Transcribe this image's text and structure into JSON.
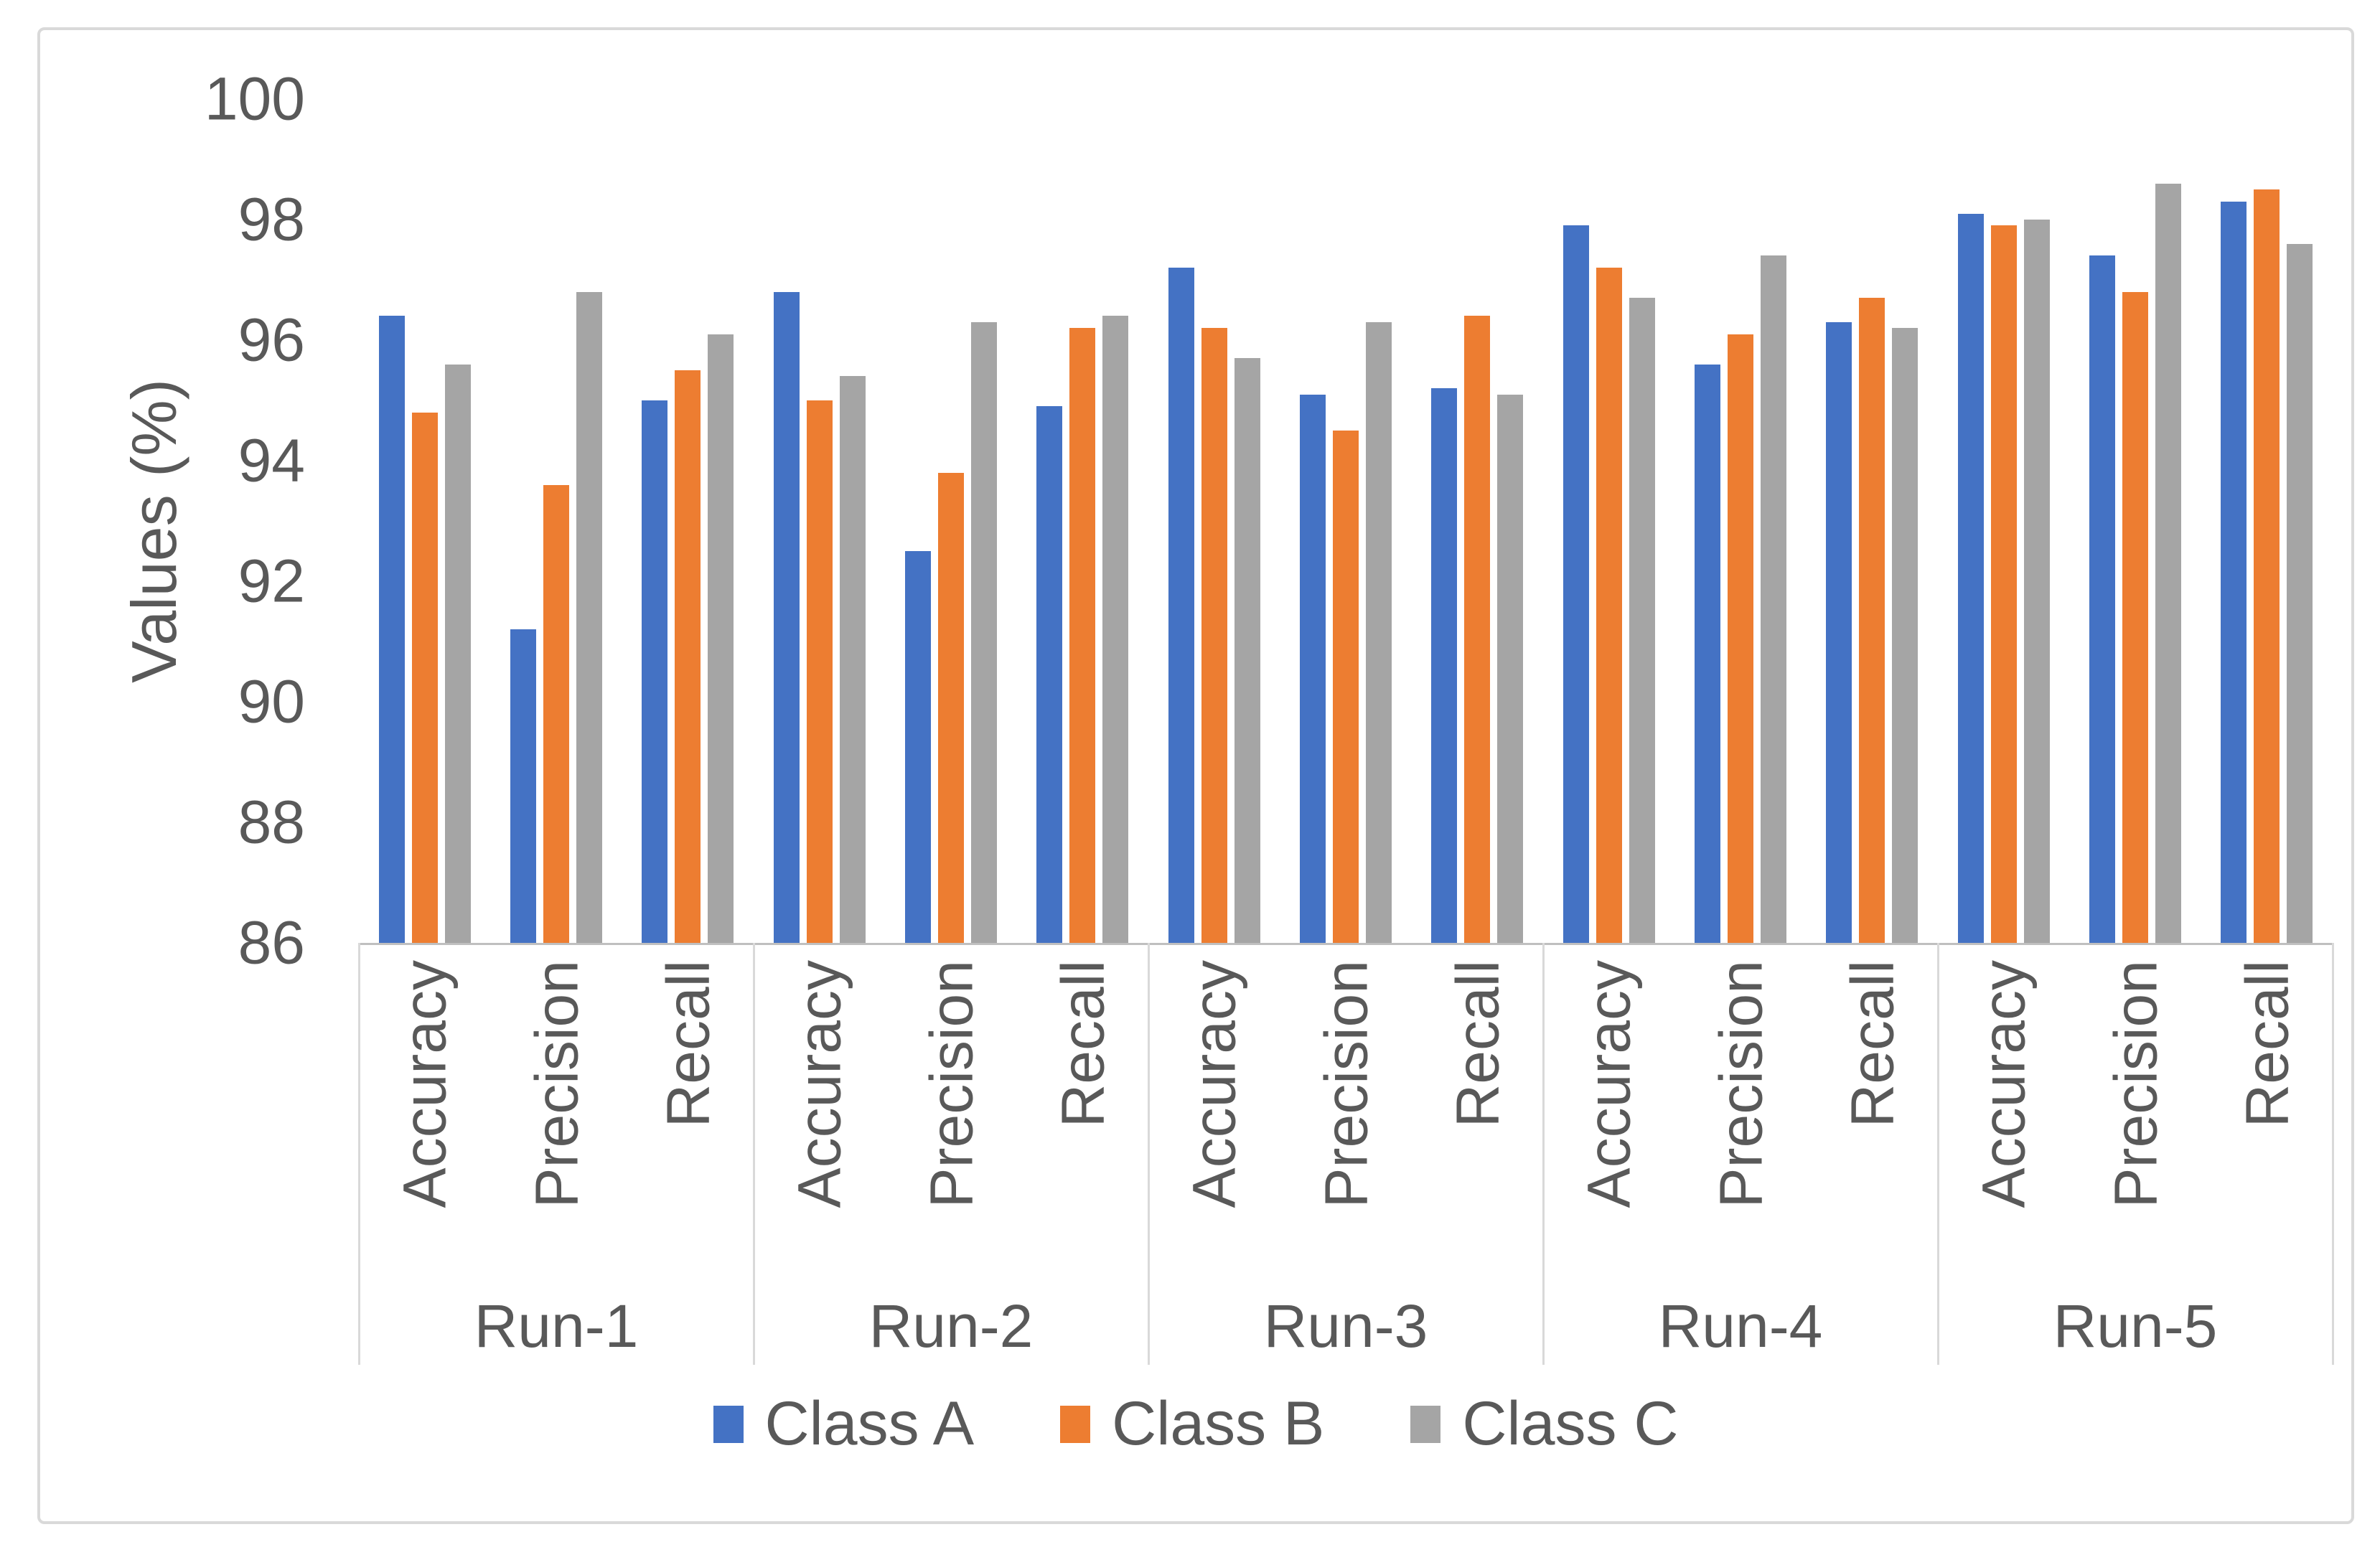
{
  "chart_data": {
    "type": "bar",
    "title": "",
    "ylabel": "Values (%)",
    "xlabel": "",
    "ylim": [
      86,
      100
    ],
    "yticks": [
      100,
      98,
      96,
      94,
      92,
      90,
      88,
      86
    ],
    "grid": false,
    "legend_position": "bottom",
    "groups": [
      "Run-1",
      "Run-2",
      "Run-3",
      "Run-4",
      "Run-5"
    ],
    "categories_per_group": [
      "Accuracy",
      "Precision",
      "Recall"
    ],
    "series": [
      {
        "name": "Class A",
        "color": "#4472C4",
        "values": [
          96.4,
          91.2,
          95.0,
          96.8,
          92.5,
          94.9,
          97.2,
          95.1,
          95.2,
          97.9,
          95.6,
          96.3,
          98.1,
          97.4,
          98.3
        ]
      },
      {
        "name": "Class B",
        "color": "#ED7D31",
        "values": [
          94.8,
          93.6,
          95.5,
          95.0,
          93.8,
          96.2,
          96.2,
          94.5,
          96.4,
          97.2,
          96.1,
          96.7,
          97.9,
          96.8,
          98.5
        ]
      },
      {
        "name": "Class C",
        "color": "#A5A5A5",
        "values": [
          95.6,
          96.8,
          96.1,
          95.4,
          96.3,
          96.4,
          95.7,
          96.3,
          95.1,
          96.7,
          97.4,
          96.2,
          98.0,
          98.6,
          97.6
        ]
      }
    ],
    "axis_text_color": "#595959",
    "axis_line_color": "#BFBFBF",
    "separator_color": "#D9D9D9"
  }
}
